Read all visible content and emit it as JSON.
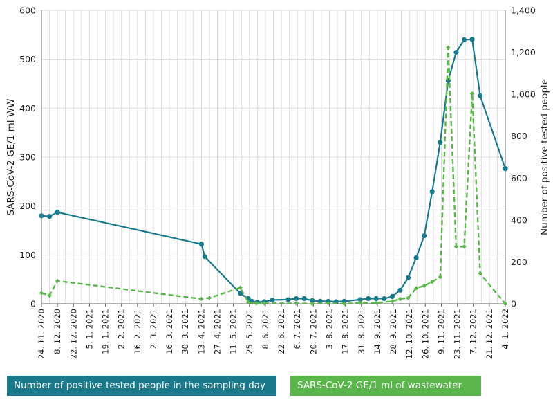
{
  "chart_data": {
    "type": "line",
    "ylabel_left": "SARS-CoV-2 GE/1 ml WW",
    "ylabel_right": "Number of positive tested people",
    "ylim_left": [
      0,
      600
    ],
    "ylim_right": [
      0,
      1400
    ],
    "yticks_left": [
      "0",
      "100",
      "200",
      "300",
      "400",
      "500",
      "600"
    ],
    "yticks_right": [
      "0",
      "200",
      "400",
      "600",
      "800",
      "1,000",
      "1,200",
      "1,400"
    ],
    "xlim": [
      "2020-11-24",
      "2022-01-04"
    ],
    "xtick_labels": [
      "24. 11. 2020",
      "8. 12. 2020",
      "22. 12. 2020",
      "5. 1. 2021",
      "19. 1. 2021",
      "2. 2. 2021",
      "16. 2. 2021",
      "2. 3. 2021",
      "16. 3. 2021",
      "30. 3. 2021",
      "13. 4. 2021",
      "27. 4. 2021",
      "11. 5. 2021",
      "25. 5. 2021",
      "8. 6. 2021",
      "22. 6. 2021",
      "6. 7. 2021",
      "20. 7. 2021",
      "3. 8. 2021",
      "17. 8. 2021",
      "31. 8. 2021",
      "14. 9. 2021",
      "28. 9. 2021",
      "12. 10. 2021",
      "26. 10. 2021",
      "9. 11. 2021",
      "23. 11. 2021",
      "7. 12. 2021",
      "21. 12. 2021",
      "4. 1. 2022"
    ],
    "grid": true,
    "legend_position": "bottom",
    "series": [
      {
        "name": "Number of positive tested people in the sampling day",
        "axis": "right",
        "color": "#1a7a8c",
        "style": "solid",
        "points": [
          [
            "2020-11-24",
            420
          ],
          [
            "2020-12-01",
            417
          ],
          [
            "2020-12-08",
            437
          ],
          [
            "2021-04-13",
            285
          ],
          [
            "2021-04-16",
            225
          ],
          [
            "2021-05-17",
            50
          ],
          [
            "2021-05-24",
            25
          ],
          [
            "2021-05-27",
            12
          ],
          [
            "2021-06-01",
            8
          ],
          [
            "2021-06-07",
            10
          ],
          [
            "2021-06-14",
            18
          ],
          [
            "2021-06-28",
            20
          ],
          [
            "2021-07-05",
            25
          ],
          [
            "2021-07-12",
            25
          ],
          [
            "2021-07-19",
            15
          ],
          [
            "2021-07-26",
            12
          ],
          [
            "2021-08-02",
            12
          ],
          [
            "2021-08-09",
            10
          ],
          [
            "2021-08-16",
            12
          ],
          [
            "2021-08-30",
            20
          ],
          [
            "2021-09-06",
            25
          ],
          [
            "2021-09-13",
            25
          ],
          [
            "2021-09-20",
            25
          ],
          [
            "2021-09-27",
            35
          ],
          [
            "2021-10-04",
            65
          ],
          [
            "2021-10-11",
            125
          ],
          [
            "2021-10-18",
            220
          ],
          [
            "2021-10-25",
            325
          ],
          [
            "2021-11-01",
            535
          ],
          [
            "2021-11-08",
            770
          ],
          [
            "2021-11-15",
            1065
          ],
          [
            "2021-11-22",
            1200
          ],
          [
            "2021-11-29",
            1260
          ],
          [
            "2021-12-06",
            1262
          ],
          [
            "2021-12-13",
            993
          ],
          [
            "2022-01-04",
            645
          ]
        ]
      },
      {
        "name": "SARS-CoV-2 GE/1 ml of wastewater",
        "axis": "left",
        "color": "#5ab54b",
        "style": "dashed",
        "points": [
          [
            "2020-11-24",
            22
          ],
          [
            "2020-12-01",
            17
          ],
          [
            "2020-12-08",
            47
          ],
          [
            "2021-04-13",
            10
          ],
          [
            "2021-04-20",
            12
          ],
          [
            "2021-05-17",
            33
          ],
          [
            "2021-05-24",
            3
          ],
          [
            "2021-05-31",
            1
          ],
          [
            "2021-06-07",
            1
          ],
          [
            "2021-07-05",
            1
          ],
          [
            "2021-07-19",
            0
          ],
          [
            "2021-08-02",
            1
          ],
          [
            "2021-08-16",
            0
          ],
          [
            "2021-08-30",
            2
          ],
          [
            "2021-09-13",
            2
          ],
          [
            "2021-09-27",
            5
          ],
          [
            "2021-10-04",
            10
          ],
          [
            "2021-10-11",
            12
          ],
          [
            "2021-10-18",
            32
          ],
          [
            "2021-10-25",
            37
          ],
          [
            "2021-11-01",
            45
          ],
          [
            "2021-11-08",
            55
          ],
          [
            "2021-11-15",
            524
          ],
          [
            "2021-11-22",
            117
          ],
          [
            "2021-11-29",
            117
          ],
          [
            "2021-12-06",
            430
          ],
          [
            "2021-12-13",
            62
          ],
          [
            "2022-01-04",
            0
          ]
        ]
      }
    ]
  }
}
